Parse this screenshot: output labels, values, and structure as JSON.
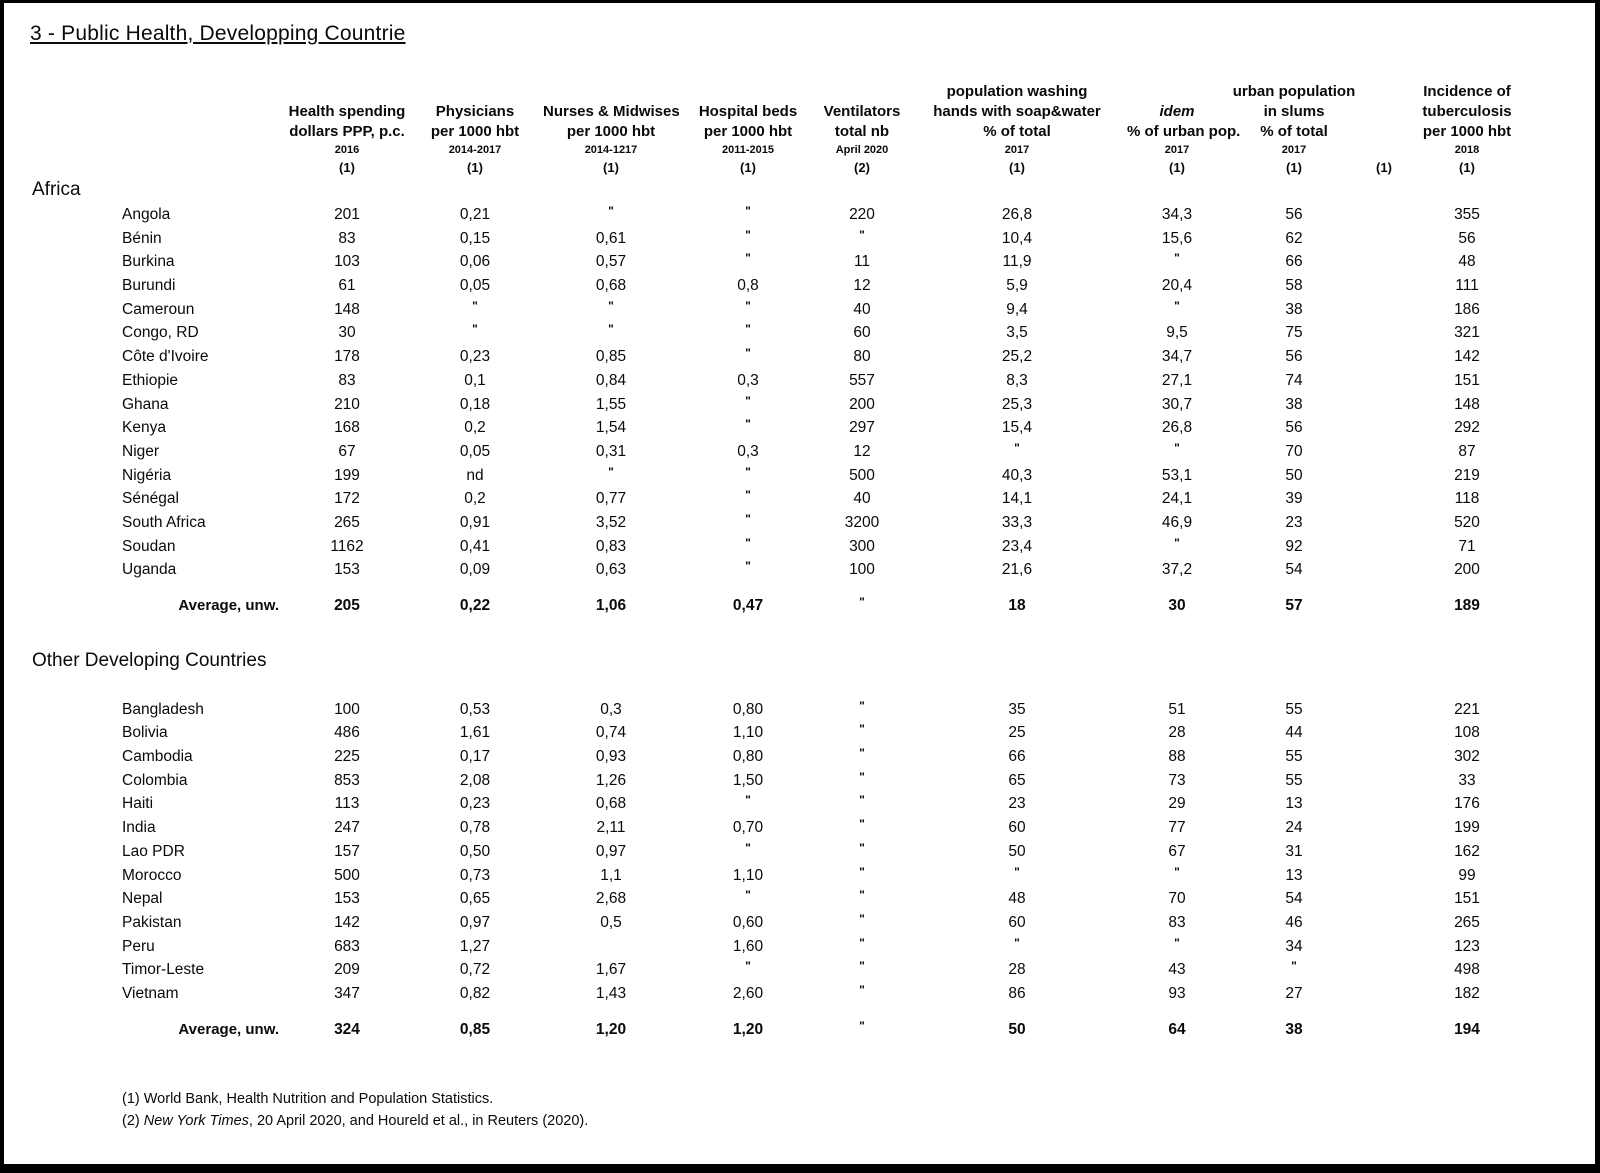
{
  "page": {
    "title": "3 - Public Health, Developping Countrie"
  },
  "table": {
    "columns": [
      {
        "id": "country",
        "name_lines": [],
        "period": "",
        "ref": ""
      },
      {
        "id": "health-spending",
        "name_lines": [
          "Health spending",
          "dollars PPP,  p.c."
        ],
        "period": "2016",
        "ref": "(1)"
      },
      {
        "id": "physicians",
        "name_lines": [
          "Physicians",
          "per 1000 hbt"
        ],
        "period": "2014-2017",
        "ref": "(1)"
      },
      {
        "id": "nurses-midwives",
        "name_lines": [
          "Nurses & Midwises",
          "per 1000 hbt"
        ],
        "period": "2014-1217",
        "ref": "(1)"
      },
      {
        "id": "hospital-beds",
        "name_lines": [
          "Hospital beds",
          "per 1000 hbt"
        ],
        "period": "2011-2015",
        "ref": "(1)"
      },
      {
        "id": "ventilators",
        "name_lines": [
          "Ventilators",
          "total nb"
        ],
        "period": "April 2020",
        "ref": "(2)"
      },
      {
        "id": "handwashing",
        "name_lines": [
          "population washing",
          "hands with soap&water",
          "% of total"
        ],
        "period": "2017",
        "ref": "(1)"
      },
      {
        "id": "idem-urban",
        "name_lines": [
          "idem",
          "% of urban pop."
        ],
        "period": "2017",
        "ref": "(1)",
        "italic_name": true
      },
      {
        "id": "urban-slums",
        "name_lines": [
          "urban population",
          "in slums",
          "% of total"
        ],
        "period": "2017",
        "ref": "(1)"
      },
      {
        "id": "ref-only",
        "name_lines": [],
        "period": "",
        "ref": "(1)"
      },
      {
        "id": "tuberculosis",
        "name_lines": [
          "Incidence of",
          "tuberculosis",
          "per 1000 hbt"
        ],
        "period": "2018",
        "ref": "(1)"
      }
    ],
    "sections": [
      {
        "label": "Africa",
        "rows": [
          {
            "country": "Angola",
            "values": [
              "201",
              "0,21",
              "\"",
              "\"",
              "220",
              "26,8",
              "34,3",
              "56",
              "",
              "355"
            ]
          },
          {
            "country": "Bénin",
            "values": [
              "83",
              "0,15",
              "0,61",
              "\"",
              "\"",
              "10,4",
              "15,6",
              "62",
              "",
              "56"
            ]
          },
          {
            "country": "Burkina",
            "values": [
              "103",
              "0,06",
              "0,57",
              "\"",
              "11",
              "11,9",
              "\"",
              "66",
              "",
              "48"
            ]
          },
          {
            "country": "Burundi",
            "values": [
              "61",
              "0,05",
              "0,68",
              "0,8",
              "12",
              "5,9",
              "20,4",
              "58",
              "",
              "111"
            ]
          },
          {
            "country": "Cameroun",
            "values": [
              "148",
              "\"",
              "\"",
              "\"",
              "40",
              "9,4",
              "\"",
              "38",
              "",
              "186"
            ]
          },
          {
            "country": "Congo, RD",
            "values": [
              "30",
              "\"",
              "\"",
              "\"",
              "60",
              "3,5",
              "9,5",
              "75",
              "",
              "321"
            ]
          },
          {
            "country": "Côte d'Ivoire",
            "values": [
              "178",
              "0,23",
              "0,85",
              "\"",
              "80",
              "25,2",
              "34,7",
              "56",
              "",
              "142"
            ]
          },
          {
            "country": "Ethiopie",
            "values": [
              "83",
              "0,1",
              "0,84",
              "0,3",
              "557",
              "8,3",
              "27,1",
              "74",
              "",
              "151"
            ]
          },
          {
            "country": "Ghana",
            "values": [
              "210",
              "0,18",
              "1,55",
              "\"",
              "200",
              "25,3",
              "30,7",
              "38",
              "",
              "148"
            ]
          },
          {
            "country": "Kenya",
            "values": [
              "168",
              "0,2",
              "1,54",
              "\"",
              "297",
              "15,4",
              "26,8",
              "56",
              "",
              "292"
            ]
          },
          {
            "country": "Niger",
            "values": [
              "67",
              "0,05",
              "0,31",
              "0,3",
              "12",
              "\"",
              "\"",
              "70",
              "",
              "87"
            ]
          },
          {
            "country": "Nigéria",
            "values": [
              "199",
              "nd",
              "\"",
              "\"",
              "500",
              "40,3",
              "53,1",
              "50",
              "",
              "219"
            ]
          },
          {
            "country": "Sénégal",
            "values": [
              "172",
              "0,2",
              "0,77",
              "\"",
              "40",
              "14,1",
              "24,1",
              "39",
              "",
              "118"
            ]
          },
          {
            "country": "South Africa",
            "values": [
              "265",
              "0,91",
              "3,52",
              "\"",
              "3200",
              "33,3",
              "46,9",
              "23",
              "",
              "520"
            ]
          },
          {
            "country": "Soudan",
            "values": [
              "1162",
              "0,41",
              "0,83",
              "\"",
              "300",
              "23,4",
              "\"",
              "92",
              "",
              "71"
            ]
          },
          {
            "country": "Uganda",
            "values": [
              "153",
              "0,09",
              "0,63",
              "\"",
              "100",
              "21,6",
              "37,2",
              "54",
              "",
              "200"
            ]
          }
        ],
        "average": {
          "label": "Average, unw.",
          "values": [
            "205",
            "0,22",
            "1,06",
            "0,47",
            "\"",
            "18",
            "30",
            "57",
            "",
            "189"
          ]
        }
      },
      {
        "label": "Other Developing Countries",
        "rows": [
          {
            "country": "Bangladesh",
            "values": [
              "100",
              "0,53",
              "0,3",
              "0,80",
              "\"",
              "35",
              "51",
              "55",
              "",
              "221"
            ]
          },
          {
            "country": "Bolivia",
            "values": [
              "486",
              "1,61",
              "0,74",
              "1,10",
              "\"",
              "25",
              "28",
              "44",
              "",
              "108"
            ]
          },
          {
            "country": "Cambodia",
            "values": [
              "225",
              "0,17",
              "0,93",
              "0,80",
              "\"",
              "66",
              "88",
              "55",
              "",
              "302"
            ]
          },
          {
            "country": "Colombia",
            "values": [
              "853",
              "2,08",
              "1,26",
              "1,50",
              "\"",
              "65",
              "73",
              "55",
              "",
              "33"
            ]
          },
          {
            "country": "Haiti",
            "values": [
              "113",
              "0,23",
              "0,68",
              "\"",
              "\"",
              "23",
              "29",
              "13",
              "",
              "176"
            ]
          },
          {
            "country": "India",
            "values": [
              "247",
              "0,78",
              "2,11",
              "0,70",
              "\"",
              "60",
              "77",
              "24",
              "",
              "199"
            ]
          },
          {
            "country": "Lao PDR",
            "values": [
              "157",
              "0,50",
              "0,97",
              "\"",
              "\"",
              "50",
              "67",
              "31",
              "",
              "162"
            ]
          },
          {
            "country": "Morocco",
            "values": [
              "500",
              "0,73",
              "1,1",
              "1,10",
              "\"",
              "\"",
              "\"",
              "13",
              "",
              "99"
            ]
          },
          {
            "country": "Nepal",
            "values": [
              "153",
              "0,65",
              "2,68",
              "\"",
              "\"",
              "48",
              "70",
              "54",
              "",
              "151"
            ]
          },
          {
            "country": "Pakistan",
            "values": [
              "142",
              "0,97",
              "0,5",
              "0,60",
              "\"",
              "60",
              "83",
              "46",
              "",
              "265"
            ]
          },
          {
            "country": "Peru",
            "values": [
              "683",
              "1,27",
              "",
              "1,60",
              "\"",
              "\"",
              "\"",
              "34",
              "",
              "123"
            ]
          },
          {
            "country": "Timor-Leste",
            "values": [
              "209",
              "0,72",
              "1,67",
              "\"",
              "\"",
              "28",
              "43",
              "\"",
              "",
              "498"
            ]
          },
          {
            "country": "Vietnam",
            "values": [
              "347",
              "0,82",
              "1,43",
              "2,60",
              "\"",
              "86",
              "93",
              "27",
              "",
              "182"
            ]
          }
        ],
        "average": {
          "label": "Average, unw.",
          "values": [
            "324",
            "0,85",
            "1,20",
            "1,20",
            "\"",
            "50",
            "64",
            "38",
            "",
            "194"
          ]
        }
      }
    ]
  },
  "footnotes": [
    {
      "ref": "(1)",
      "pre": "World Bank, Health Nutrition and Population Statistics.",
      "italic": "",
      "post": ""
    },
    {
      "ref": "(2)",
      "pre": "",
      "italic": "New York Times",
      "post": ", 20 April 2020, and Houreld et al., in Reuters (2020)."
    }
  ]
}
